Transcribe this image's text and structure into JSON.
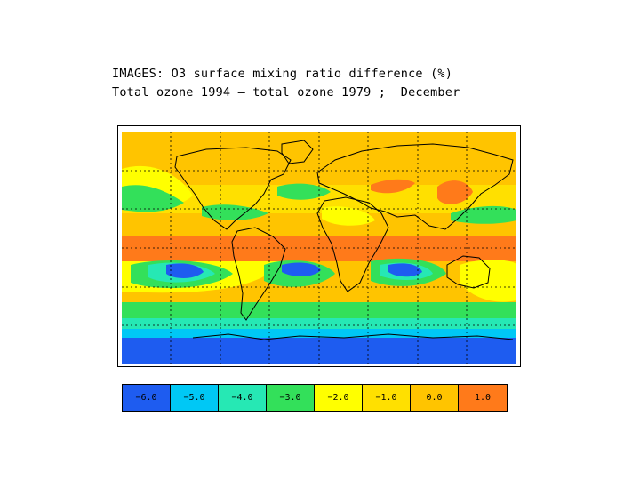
{
  "title": {
    "line1": "IMAGES: O3 surface mixing ratio difference (%)",
    "line2": "Total ozone 1994 — total ozone 1979 ;  December"
  },
  "colors": {
    "blue": "#1e5cf0",
    "lightblue": "#00c8f5",
    "teal": "#26e8b4",
    "green": "#33e05a",
    "yellow": "#ffff00",
    "yelloworange": "#ffe000",
    "gold": "#ffc400",
    "orange": "#ff7a1a"
  },
  "legend": [
    {
      "label": "−6.0",
      "color": "#1e5cf0"
    },
    {
      "label": "−5.0",
      "color": "#00c8f5"
    },
    {
      "label": "−4.0",
      "color": "#26e8b4"
    },
    {
      "label": "−3.0",
      "color": "#33e05a"
    },
    {
      "label": "−2.0",
      "color": "#ffff00"
    },
    {
      "label": "−1.0",
      "color": "#ffe000"
    },
    {
      "label": "0.0",
      "color": "#ffc400"
    },
    {
      "label": "1.0",
      "color": "#ff7a1a"
    }
  ]
}
